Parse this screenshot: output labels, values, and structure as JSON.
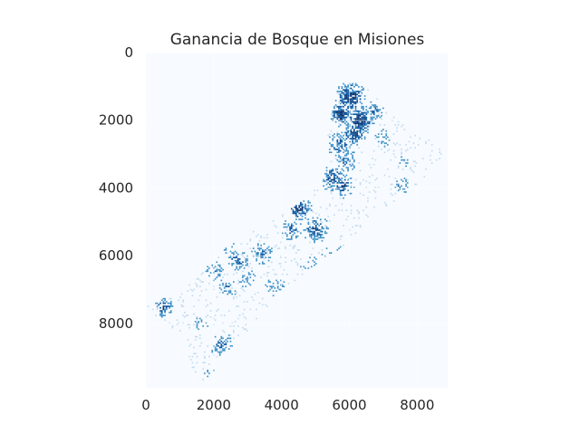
{
  "chart_data": {
    "type": "heatmap",
    "title": "Ganancia de Bosque en Misiones",
    "xlabel": "",
    "ylabel": "",
    "xlim": [
      0,
      8900
    ],
    "ylim": [
      9900,
      0
    ],
    "x_ticks": [
      0,
      2000,
      4000,
      6000,
      8000
    ],
    "y_ticks": [
      0,
      2000,
      4000,
      6000,
      8000
    ],
    "x_tick_labels": [
      "0",
      "2000",
      "4000",
      "6000",
      "8000"
    ],
    "y_tick_labels": [
      "0",
      "2000",
      "4000",
      "6000",
      "8000"
    ],
    "colormap": "Blues",
    "colors": {
      "background": "#f7fbff",
      "light": "#c6dbef",
      "mid": "#4292c6",
      "dark": "#08519c",
      "darkest": "#08306b"
    },
    "grid": true
  }
}
